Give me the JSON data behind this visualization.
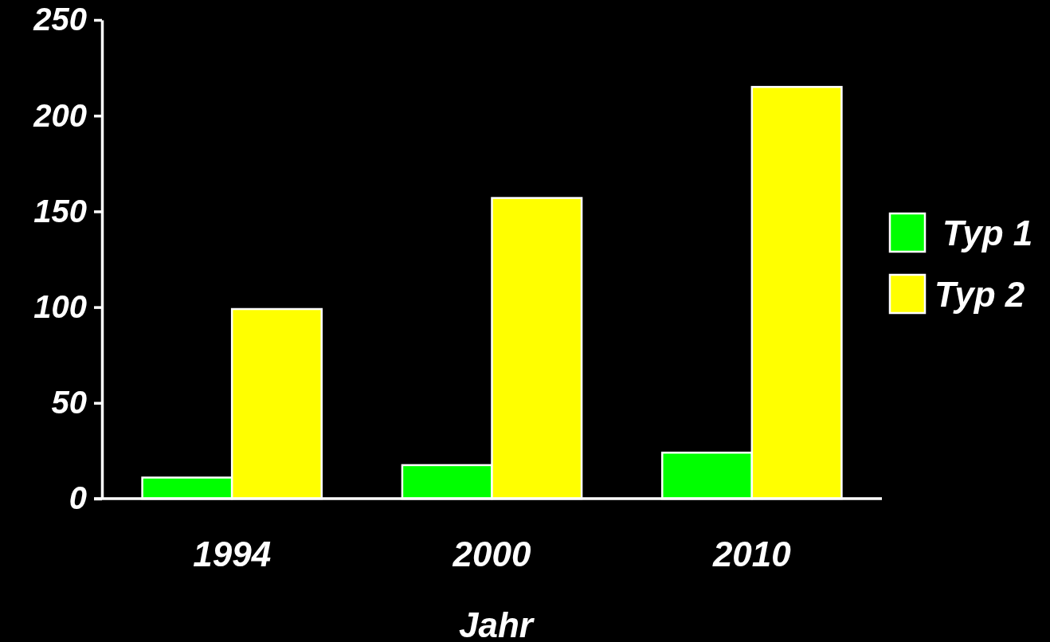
{
  "chart_data": {
    "type": "bar",
    "xlabel": "Jahr",
    "categories": [
      "1994",
      "2000",
      "2010"
    ],
    "series": [
      {
        "name": "Typ 1",
        "color": "#00ff00",
        "values": [
          11,
          17.5,
          24
        ]
      },
      {
        "name": "Typ 2",
        "color": "#ffff00",
        "values": [
          99,
          157,
          215
        ]
      }
    ],
    "ylim": [
      0,
      250
    ],
    "yticks": [
      0,
      50,
      100,
      150,
      200,
      250
    ],
    "grid": false,
    "legend": "right"
  }
}
